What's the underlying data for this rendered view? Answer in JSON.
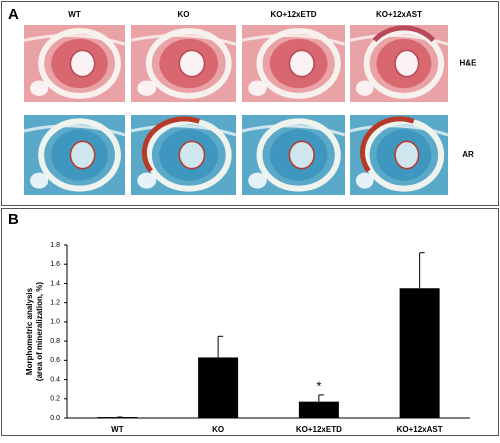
{
  "panel_a": {
    "label": "A",
    "columns": [
      "WT",
      "KO",
      "KO+12xETD",
      "KO+12xAST"
    ],
    "rows": [
      "H&E",
      "AR"
    ]
  },
  "chart_data": {
    "type": "bar",
    "panel_label": "B",
    "y_label": [
      "Morphometric analysis",
      "(area of mineralization, %)"
    ],
    "categories": [
      "WT",
      "KO",
      "KO+12xETD",
      "KO+12xAST"
    ],
    "values": [
      0.01,
      0.63,
      0.17,
      1.35
    ],
    "errors": [
      0,
      0.22,
      0.07,
      0.37
    ],
    "value_annotations": [
      null,
      null,
      "*",
      null
    ],
    "color": "#000000",
    "ylim": [
      0,
      1.8
    ],
    "yticks": [
      {
        "value": 0,
        "label": "0.0"
      },
      0.2,
      0.4,
      0.6,
      0.8,
      {
        "value": 1,
        "label": "1.0"
      },
      1.2,
      1.4,
      1.6,
      1.8
    ]
  }
}
